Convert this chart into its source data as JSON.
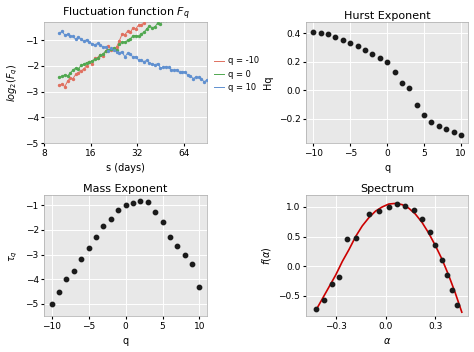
{
  "title_fl": "Fluctuation function $F_q$",
  "title_hurst": "Hurst Exponent",
  "title_mass": "Mass Exponent",
  "title_spec": "Spectrum",
  "bg_color": "#e8e8e8",
  "fig_color": "#ffffff",
  "fl_colors": [
    "#e07060",
    "#50a850",
    "#6090d0"
  ],
  "fl_legend": [
    "q = -10",
    "q = 0",
    "q = 10"
  ],
  "hurst_q": [
    -10,
    -9,
    -8,
    -7,
    -6,
    -5,
    -4,
    -3,
    -2,
    -1,
    0,
    1,
    2,
    3,
    4,
    5,
    6,
    7,
    8,
    9,
    10
  ],
  "hurst_Hq": [
    0.41,
    0.405,
    0.395,
    0.375,
    0.355,
    0.335,
    0.31,
    0.285,
    0.255,
    0.225,
    0.2,
    0.13,
    0.05,
    0.02,
    -0.1,
    -0.17,
    -0.22,
    -0.25,
    -0.27,
    -0.29,
    -0.31
  ],
  "mass_q": [
    -10,
    -9,
    -8,
    -7,
    -6,
    -5,
    -4,
    -3,
    -2,
    -1,
    0,
    1,
    2,
    3,
    4,
    5,
    6,
    7,
    8,
    9,
    10
  ],
  "mass_tau": [
    -5.0,
    -4.5,
    -4.0,
    -3.65,
    -3.2,
    -2.75,
    -2.3,
    -1.85,
    -1.55,
    -1.2,
    -1.0,
    -0.93,
    -0.82,
    -0.88,
    -1.3,
    -1.7,
    -2.3,
    -2.65,
    -3.0,
    -3.4,
    -4.3
  ],
  "spec_alpha_line": [
    -0.42,
    -0.38,
    -0.34,
    -0.3,
    -0.26,
    -0.22,
    -0.18,
    -0.14,
    -0.1,
    -0.06,
    -0.02,
    0.02,
    0.06,
    0.1,
    0.14,
    0.18,
    0.22,
    0.26,
    0.3,
    0.34,
    0.38,
    0.42,
    0.46
  ],
  "spec_falpha_line": [
    -0.75,
    -0.55,
    -0.35,
    -0.15,
    0.08,
    0.28,
    0.5,
    0.68,
    0.82,
    0.93,
    1.0,
    1.05,
    1.06,
    1.04,
    0.98,
    0.88,
    0.74,
    0.56,
    0.35,
    0.12,
    -0.15,
    -0.45,
    -0.78
  ],
  "spec_dots_alpha": [
    -0.42,
    -0.37,
    -0.32,
    -0.28,
    -0.23,
    -0.18,
    -0.1,
    -0.04,
    0.02,
    0.07,
    0.12,
    0.17,
    0.22,
    0.27,
    0.3,
    0.34,
    0.37,
    0.4,
    0.43
  ],
  "spec_dots_f": [
    -0.72,
    -0.58,
    -0.3,
    -0.18,
    0.45,
    0.47,
    0.88,
    0.93,
    1.0,
    1.05,
    1.02,
    0.95,
    0.8,
    0.58,
    0.35,
    0.1,
    -0.15,
    -0.4,
    -0.65
  ],
  "dot_color": "#1a1a1a",
  "line_color_spec": "#cc0000",
  "grid_color": "#ffffff",
  "fl_qn10_intercept": -7.5,
  "fl_qn10_slope": 1.4,
  "fl_q0_intercept": -5.8,
  "fl_q0_slope": 1.0,
  "fl_q10_intercept": 1.3,
  "fl_q10_slope": -0.6
}
